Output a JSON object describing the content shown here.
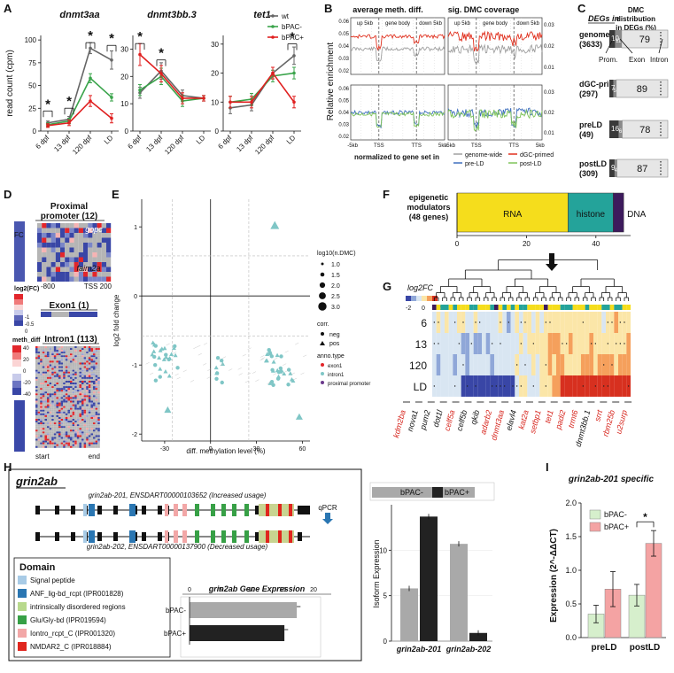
{
  "panel_letters": [
    "A",
    "B",
    "C",
    "D",
    "E",
    "F",
    "G",
    "H",
    "I"
  ],
  "colors": {
    "wt": "#666666",
    "bPAC_minus": "#3aa44b",
    "bPAC_plus": "#e02020",
    "genome_wide": "#a0a0a0",
    "pre_LD": "#3f6fbf",
    "dGC_primed": "#e0301e",
    "post_LD": "#7fc45a",
    "rna": "#f5dd1c",
    "histone": "#24a39a",
    "dna": "#3d1a5c",
    "bar_gray": "#a9a9a9",
    "bar_black": "#222222",
    "i_green": "#d6efcc",
    "i_pink": "#f4a3a3"
  },
  "chart_data": [
    {
      "id": "A",
      "type": "line",
      "ylabel": "read count (cpm)",
      "x": [
        "6 dpf",
        "13 dpf",
        "120 dpf",
        "LD"
      ],
      "legend": [
        "wt",
        "bPAC-",
        "bPAC+"
      ],
      "subplots": [
        {
          "title": "dnmt3aa",
          "ylim": [
            0,
            105
          ],
          "yticks": [
            0,
            25,
            50,
            75,
            100
          ],
          "series": [
            {
              "name": "wt",
              "values": [
                9,
                13,
                91,
                78
              ],
              "err": [
                2,
                3,
                6,
                10
              ]
            },
            {
              "name": "bPAC-",
              "values": [
                7,
                11,
                58,
                37
              ],
              "err": [
                2,
                3,
                5,
                4
              ]
            },
            {
              "name": "bPAC+",
              "values": [
                6,
                9,
                33,
                14
              ],
              "err": [
                2,
                3,
                6,
                5
              ]
            }
          ],
          "sig": [
            "*",
            "*",
            "*",
            "*"
          ]
        },
        {
          "title": "dnmt3bb.3",
          "ylim": [
            0,
            35
          ],
          "yticks": [
            0,
            10,
            20,
            30
          ],
          "series": [
            {
              "name": "wt",
              "values": [
                14,
                22,
                13,
                12
              ],
              "err": [
                2,
                3,
                2,
                1
              ]
            },
            {
              "name": "bPAC-",
              "values": [
                15,
                20,
                11,
                12
              ],
              "err": [
                2,
                3,
                2,
                1
              ]
            },
            {
              "name": "bPAC+",
              "values": [
                28,
                21,
                12,
                12
              ],
              "err": [
                4,
                3,
                2,
                1
              ]
            }
          ],
          "sig": [
            "*",
            "*"
          ]
        },
        {
          "title": "tet1",
          "ylim": [
            0,
            33
          ],
          "yticks": [
            0,
            10,
            20,
            30
          ],
          "series": [
            {
              "name": "wt",
              "values": [
                8,
                9,
                20,
                26
              ],
              "err": [
                2,
                2,
                2,
                3
              ]
            },
            {
              "name": "bPAC-",
              "values": [
                10,
                11,
                19,
                20
              ],
              "err": [
                2,
                2,
                2,
                2
              ]
            },
            {
              "name": "bPAC+",
              "values": [
                10,
                10,
                20,
                10
              ],
              "err": [
                2,
                2,
                2,
                2
              ]
            }
          ],
          "sig": [
            "*"
          ]
        }
      ]
    },
    {
      "id": "B",
      "type": "line",
      "ylabel": "Relative enrichment",
      "col_titles": [
        "average meth. diff.",
        "sig. DMC coverage"
      ],
      "region_labels": [
        "up 5kb",
        "gene body",
        "down 5kb"
      ],
      "xticks": [
        "-5kb",
        "TSS",
        "TTS",
        "5kb"
      ],
      "left_yticks": [
        "0.06",
        "0.05",
        "0.04",
        "0.03",
        "0.02"
      ],
      "right_yticks": [
        "0.03",
        "0.02",
        "0.01"
      ],
      "footer": "normalized to gene set in",
      "legend": [
        "genome-wide",
        "pre-LD",
        "dGC-primed",
        "post-LD"
      ]
    },
    {
      "id": "C",
      "type": "table",
      "header_left": "DEGs in",
      "header_right": "DMC distribution in DEGs (%)",
      "rows": [
        {
          "label": "genome",
          "n": "(3633)",
          "prom": 10,
          "exon": 11,
          "intron": 79
        },
        {
          "label": "dGC-primed",
          "n": "(297)",
          "prom": 7,
          "exon": 5,
          "intron": 89
        },
        {
          "label": "preLD",
          "n": "(49)",
          "prom": 16,
          "exon": 6,
          "intron": 78
        },
        {
          "label": "postLD",
          "n": "(309)",
          "prom": 9,
          "exon": 4,
          "intron": 87
        }
      ],
      "annot": [
        "Prom.",
        "Exon",
        "Intron"
      ]
    },
    {
      "id": "E",
      "type": "scatter",
      "xlabel": "diff. methylation level (%)",
      "ylabel": "log2 fold change",
      "xticks": [
        -30,
        0,
        30,
        60
      ],
      "yticks": [
        1,
        0,
        -1,
        -2
      ],
      "size_legend_title": "log10(n.DMC)",
      "size_values": [
        "1.0",
        "1.5",
        "2.0",
        "2.5",
        "3.0"
      ],
      "corr_title": "corr.",
      "corr_values": [
        "neg",
        "pos"
      ],
      "anno_title": "anno.type",
      "anno_values": [
        "exon1",
        "intron1",
        "proximal promoter"
      ]
    },
    {
      "id": "F",
      "type": "bar",
      "title": "epigenetic modulators (48 genes)",
      "segments": [
        {
          "name": "RNA",
          "value": 32
        },
        {
          "name": "histone",
          "value": 13
        },
        {
          "name": "DNA",
          "value": 3
        }
      ],
      "xticks": [
        0,
        20,
        40
      ]
    },
    {
      "id": "H_iso",
      "type": "bar",
      "ylabel": "Isoform Expression",
      "categories": [
        "grin2ab-201",
        "grin2ab-202"
      ],
      "series": [
        {
          "name": "bPAC-",
          "values": [
            5.8,
            10.7
          ]
        },
        {
          "name": "bPAC+",
          "values": [
            13.7,
            0.9
          ]
        }
      ],
      "yticks": [
        0,
        5,
        10
      ]
    },
    {
      "id": "H_gene",
      "type": "bar",
      "title": "grin2ab Gene Expression",
      "categories": [
        "bPAC-",
        "bPAC+"
      ],
      "values": [
        17.3,
        15.3
      ],
      "xticks": [
        0,
        5,
        10,
        15,
        20
      ]
    },
    {
      "id": "I",
      "type": "bar",
      "title": "grin2ab-201 specific",
      "ylabel": "Expression (2^-ΔΔCT)",
      "categories": [
        "preLD",
        "postLD"
      ],
      "series": [
        {
          "name": "bPAC-",
          "values": [
            0.35,
            0.63
          ],
          "err": [
            0.13,
            0.16
          ]
        },
        {
          "name": "bPAC+",
          "values": [
            0.72,
            1.4
          ],
          "err": [
            0.26,
            0.19
          ]
        }
      ],
      "ylim": [
        0,
        2.0
      ],
      "yticks": [
        "0.0",
        "0.5",
        "1.0",
        "1.5",
        "2.0"
      ],
      "sig": "*"
    }
  ],
  "panelD": {
    "sections": [
      {
        "title": "Proximal promoter (12)"
      },
      {
        "title": "Exon1 (1)"
      },
      {
        "title": "Intron1 (113)"
      }
    ],
    "fc_label": "FC",
    "labels_in_heat": [
      "gopc",
      "faim2a"
    ],
    "axis": [
      "-800",
      "TSS 200"
    ],
    "bottom": [
      "start",
      "end"
    ],
    "legend1_title": "log2(FC)",
    "legend1_ticks": [
      "-1",
      "-0.5",
      "0"
    ],
    "legend2_title": "meth_diff",
    "legend2_ticks": [
      "40",
      "20",
      "0",
      "-20",
      "-40"
    ]
  },
  "panelG": {
    "title": "log2FC",
    "scale": [
      "-2",
      "0",
      "2"
    ],
    "rows": [
      "6",
      "13",
      "120",
      "LD"
    ],
    "genes": [
      {
        "name": "kdm2ba",
        "red": true
      },
      {
        "name": "nova1",
        "red": false
      },
      {
        "name": "pum2",
        "red": false
      },
      {
        "name": "dot1l",
        "red": false
      },
      {
        "name": "celf5a",
        "red": true
      },
      {
        "name": "celf5b",
        "red": false
      },
      {
        "name": "qkib",
        "red": false
      },
      {
        "name": "adarb2",
        "red": true
      },
      {
        "name": "dnmt3aa",
        "red": true
      },
      {
        "name": "elavl4",
        "red": false
      },
      {
        "name": "kat2a",
        "red": true
      },
      {
        "name": "setbp1",
        "red": true
      },
      {
        "name": "tet1",
        "red": true
      },
      {
        "name": "padi2",
        "red": true
      },
      {
        "name": "trmt6",
        "red": true
      },
      {
        "name": "dnmt3bb.1",
        "red": false
      },
      {
        "name": "srrt",
        "red": true
      },
      {
        "name": "rbm25b",
        "red": true
      },
      {
        "name": "u2surp",
        "red": true
      }
    ]
  },
  "panelH": {
    "gene": "grin2ab",
    "iso1": "grin2ab-201, ENSDART00000103652 (Increased usage)",
    "iso2": "grin2ab-202, ENSDART00000137900 (Decreased usage)",
    "qpcr": "qPCR",
    "domain_title": "Domain",
    "domains": [
      {
        "name": "Signal peptide",
        "color": "#a8cbe6"
      },
      {
        "name": "ANF_lig-bd_rcpt (IPR001828)",
        "color": "#2a76b2"
      },
      {
        "name": "intrinsically disordered regions",
        "color": "#b8d98c"
      },
      {
        "name": "Glu/Gly-bd (IPR019594)",
        "color": "#37a046"
      },
      {
        "name": "Iontro_rcpt_C (IPR001320)",
        "color": "#f2a7a7"
      },
      {
        "name": "NMDAR2_C (IPR018884)",
        "color": "#e0261e"
      }
    ]
  }
}
